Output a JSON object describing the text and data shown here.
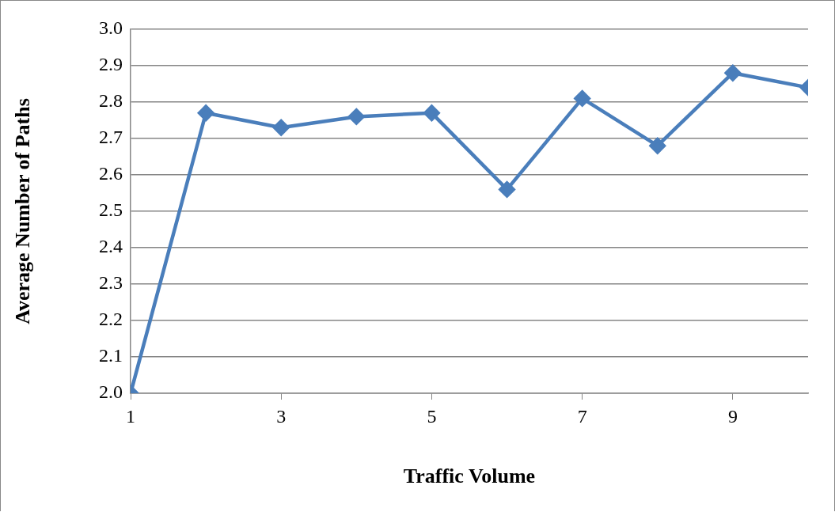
{
  "chart_data": {
    "type": "line",
    "xlabel": "Traffic Volume",
    "ylabel": "Average Number of Paths",
    "x": [
      1,
      2,
      3,
      4,
      5,
      6,
      7,
      8,
      9,
      10
    ],
    "series": [
      {
        "color": "#4a7ebb",
        "values": [
          2.0,
          2.77,
          2.73,
          2.76,
          2.77,
          2.56,
          2.81,
          2.68,
          2.88,
          2.84
        ]
      }
    ],
    "xlim": [
      1,
      10
    ],
    "xticks": [
      1,
      3,
      5,
      7,
      9
    ],
    "ylim": [
      2.0,
      3.0
    ],
    "yticks": [
      {
        "value": 2.0,
        "label": "2.0"
      },
      2.1,
      2.2,
      2.3,
      2.4,
      2.5,
      2.6,
      2.7,
      2.8,
      2.9,
      {
        "value": 3.0,
        "label": "3.0"
      }
    ],
    "grid": "y",
    "legend": false,
    "marker": "diamond",
    "line_style": "solid"
  }
}
